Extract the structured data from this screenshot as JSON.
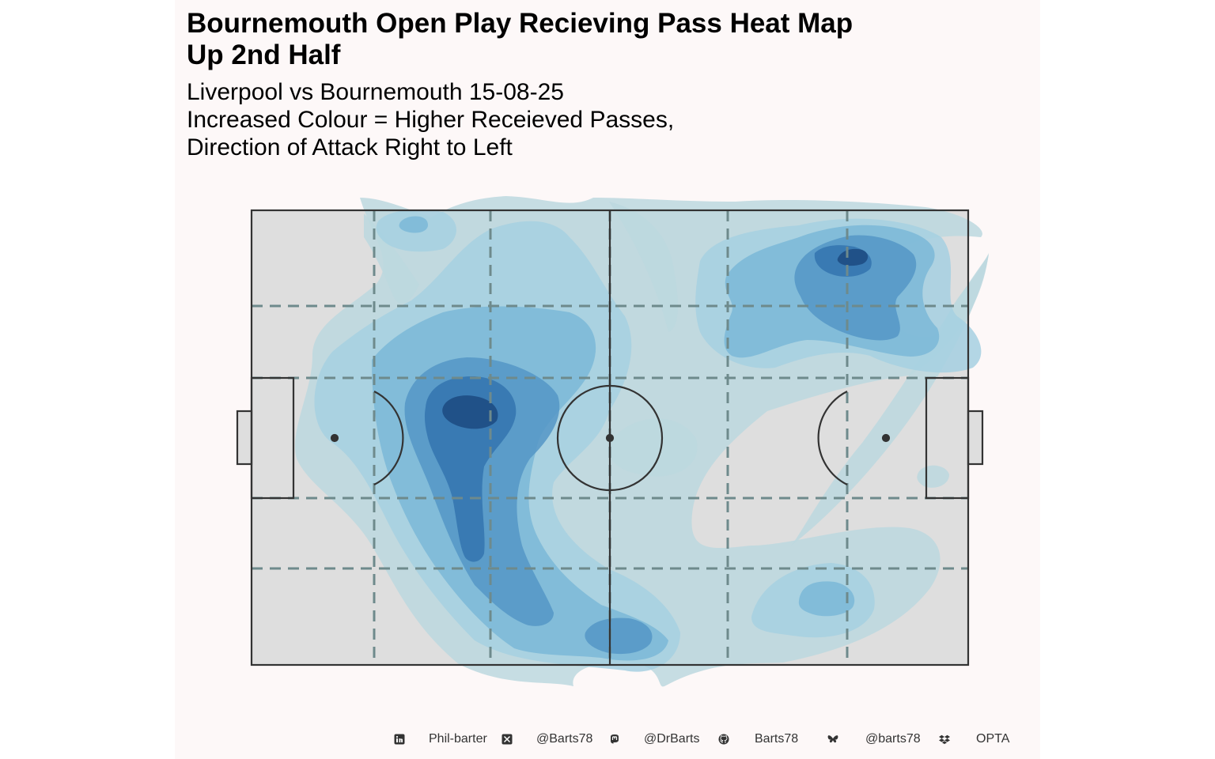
{
  "title_lines": [
    "Bournemouth Open Play Recieving Pass Heat Map",
    "Up 2nd Half"
  ],
  "subtitle_lines": [
    "Liverpool vs Bournemouth 15-08-25",
    "Increased Colour = Higher Receieved Passes,",
    "Direction of Attack Right to Left"
  ],
  "colors": {
    "panel_background": "#fdf8f8",
    "pitch_fill": "#dedede",
    "pitch_lines": "#333333",
    "zone_lines": "#6e8a8c",
    "density_levels": [
      "#bcd8df",
      "#a6d0e2",
      "#7bb8d7",
      "#5596c5",
      "#3577b0",
      "#1f4f86"
    ]
  },
  "chart_data": {
    "type": "heatmap",
    "x_range": [
      0,
      100
    ],
    "y_range": [
      0,
      100
    ],
    "attack_direction": "right-to-left",
    "grid_lines": true,
    "density_hotspots": [
      {
        "x": 32,
        "y": 50,
        "level": 6
      },
      {
        "x": 30,
        "y": 33,
        "level": 5
      },
      {
        "x": 84,
        "y": 90,
        "level": 5
      },
      {
        "x": 52,
        "y": 6,
        "level": 4
      },
      {
        "x": 80,
        "y": 14,
        "level": 3
      },
      {
        "x": 23,
        "y": 95,
        "level": 3
      },
      {
        "x": 96,
        "y": 40,
        "level": 2
      }
    ]
  },
  "footer": {
    "linkedin": {
      "icon": "linkedin-icon",
      "label": "Phil-barter"
    },
    "x": {
      "icon": "x-icon",
      "label": "@Barts78"
    },
    "mastodon": {
      "icon": "mastodon-icon",
      "label": "@DrBarts"
    },
    "github": {
      "icon": "github-icon",
      "label": "Barts78"
    },
    "bluesky": {
      "icon": "bluesky-icon",
      "label": "@barts78"
    },
    "dropbox": {
      "icon": "dropbox-icon",
      "label": "OPTA"
    }
  }
}
